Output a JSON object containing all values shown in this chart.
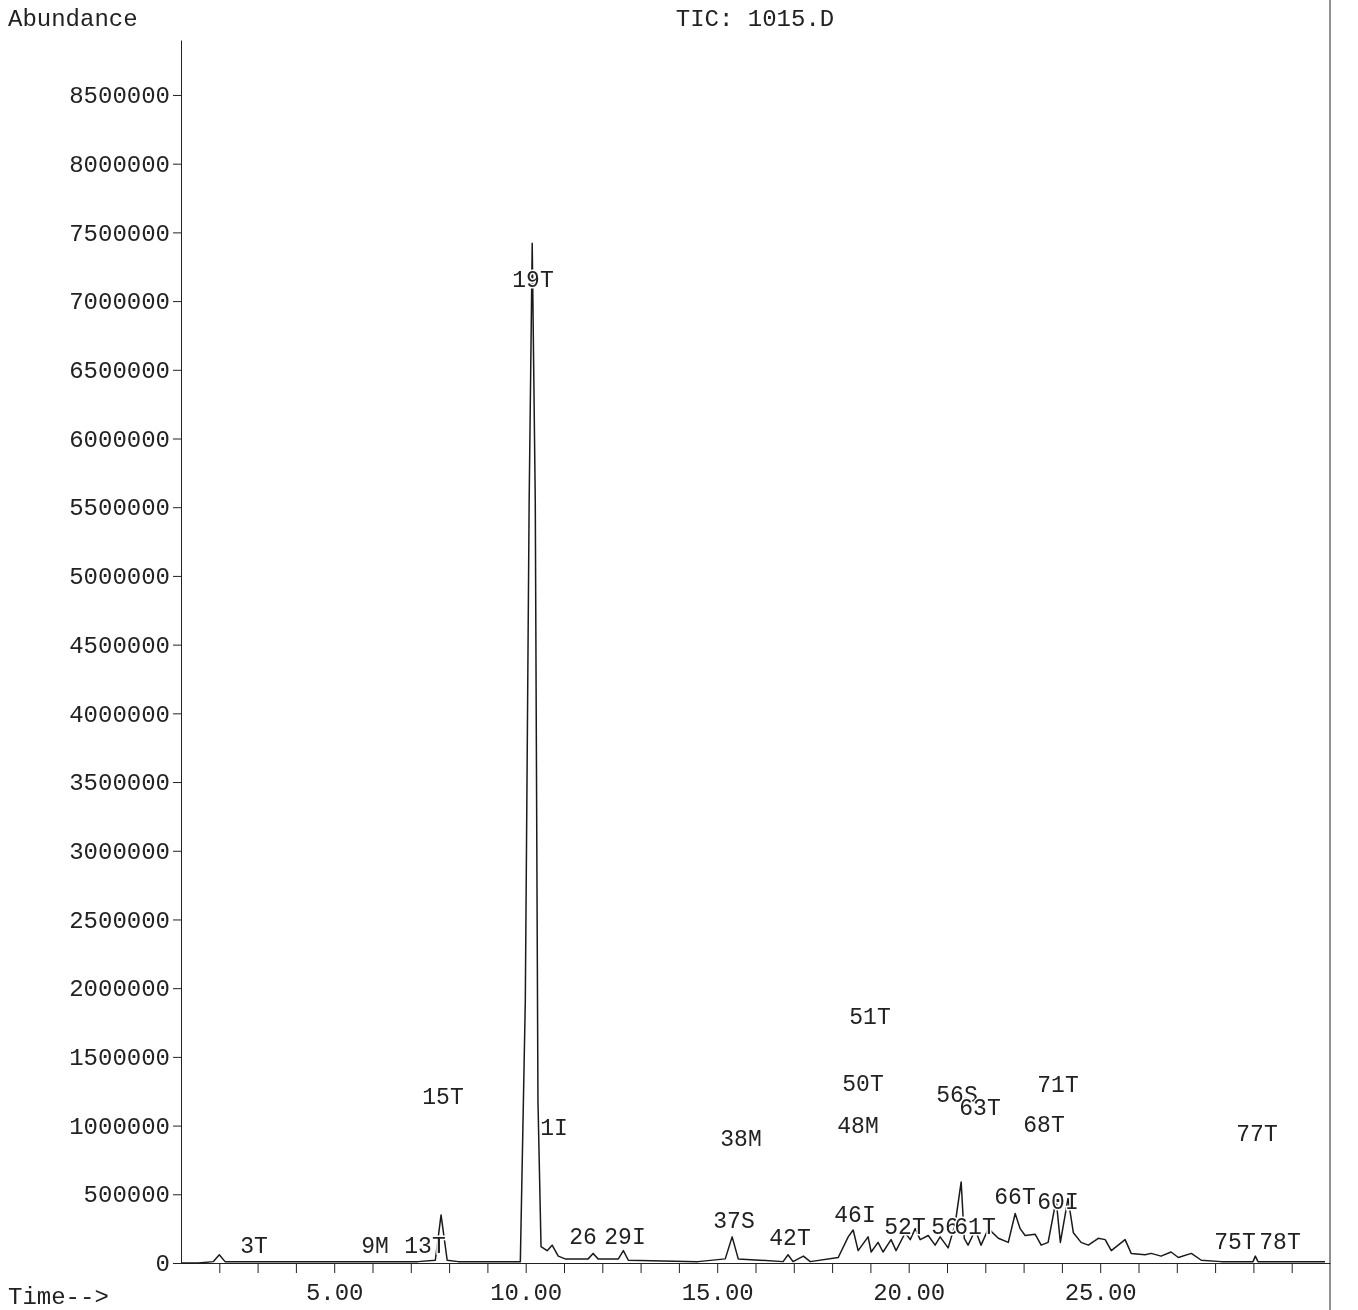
{
  "chart_data": {
    "type": "line",
    "title": "TIC: 1015.D",
    "ylabel": "Abundance",
    "xlabel": "Time-->",
    "x": [
      1.0,
      1.45,
      1.84,
      2.0,
      2.15,
      3.02,
      4.84,
      7.19,
      7.64,
      7.79,
      7.95,
      8.24,
      9.86,
      9.99,
      10.09,
      10.17,
      10.25,
      10.32,
      10.4,
      10.56,
      10.69,
      10.85,
      11.03,
      11.63,
      11.76,
      11.89,
      12.42,
      12.55,
      12.68,
      14.5,
      15.21,
      15.39,
      15.55,
      16.72,
      16.85,
      16.98,
      17.25,
      17.43,
      18.16,
      18.42,
      18.55,
      18.68,
      18.94,
      19.02,
      19.2,
      19.33,
      19.54,
      19.67,
      19.91,
      20.04,
      20.17,
      20.3,
      20.51,
      20.69,
      20.82,
      21.03,
      21.21,
      21.37,
      21.45,
      21.55,
      21.74,
      21.89,
      22.08,
      22.34,
      22.6,
      22.78,
      22.91,
      23.04,
      23.3,
      23.46,
      23.64,
      23.85,
      23.96,
      24.16,
      24.3,
      24.5,
      24.69,
      24.95,
      25.13,
      25.29,
      25.65,
      25.81,
      26.17,
      26.33,
      26.59,
      26.85,
      27.04,
      27.38,
      27.64,
      28.16,
      28.99,
      29.05,
      29.12,
      30.87
    ],
    "series": [
      {
        "color": "#1a1a1a",
        "values": [
          0,
          0,
          10000,
          60000,
          10000,
          10000,
          10000,
          10000,
          20000,
          350000,
          20000,
          10000,
          10000,
          1910000,
          5540000,
          7420000,
          5540000,
          1180000,
          120000,
          90000,
          130000,
          50000,
          30000,
          30000,
          70000,
          30000,
          30000,
          90000,
          20000,
          10000,
          30000,
          190000,
          30000,
          10000,
          60000,
          10000,
          50000,
          10000,
          40000,
          190000,
          240000,
          90000,
          190000,
          80000,
          150000,
          80000,
          170000,
          90000,
          220000,
          170000,
          250000,
          170000,
          200000,
          130000,
          190000,
          110000,
          280000,
          590000,
          180000,
          130000,
          240000,
          130000,
          250000,
          180000,
          150000,
          360000,
          250000,
          200000,
          210000,
          130000,
          150000,
          460000,
          150000,
          470000,
          220000,
          150000,
          130000,
          180000,
          170000,
          90000,
          170000,
          70000,
          60000,
          70000,
          50000,
          80000,
          40000,
          70000,
          20000,
          10000,
          10000,
          50000,
          10000,
          10000
        ]
      }
    ],
    "xlim": [
      1,
      31
    ],
    "xticks": [
      {
        "value": 2,
        "label": null
      },
      {
        "value": 3,
        "label": null
      },
      {
        "value": 4,
        "label": null
      },
      {
        "value": 5,
        "label": "5.00"
      },
      {
        "value": 6,
        "label": null
      },
      {
        "value": 7,
        "label": null
      },
      {
        "value": 8,
        "label": null
      },
      {
        "value": 9,
        "label": null
      },
      {
        "value": 10,
        "label": "10.00"
      },
      {
        "value": 11,
        "label": null
      },
      {
        "value": 12,
        "label": null
      },
      {
        "value": 13,
        "label": null
      },
      {
        "value": 14,
        "label": null
      },
      {
        "value": 15,
        "label": "15.00"
      },
      {
        "value": 16,
        "label": null
      },
      {
        "value": 17,
        "label": null
      },
      {
        "value": 18,
        "label": null
      },
      {
        "value": 19,
        "label": null
      },
      {
        "value": 20,
        "label": "20.00"
      },
      {
        "value": 21,
        "label": null
      },
      {
        "value": 22,
        "label": null
      },
      {
        "value": 23,
        "label": null
      },
      {
        "value": 24,
        "label": null
      },
      {
        "value": 25,
        "label": "25.00"
      },
      {
        "value": 26,
        "label": null
      },
      {
        "value": 27,
        "label": null
      },
      {
        "value": 28,
        "label": null
      },
      {
        "value": 29,
        "label": null
      },
      {
        "value": 30,
        "label": null
      }
    ],
    "ylim": [
      0,
      8900000
    ],
    "yticks": [
      0,
      500000,
      1000000,
      1500000,
      2000000,
      2500000,
      3000000,
      3500000,
      4000000,
      4500000,
      5000000,
      5500000,
      6000000,
      6500000,
      7000000,
      7500000,
      8000000,
      8500000
    ],
    "grid": false,
    "marker": "none",
    "line_style": "solid",
    "annotations": [
      "3T",
      "9M",
      "13T",
      "15T",
      "19T",
      "1I",
      "26",
      "29I",
      "37S",
      "38M",
      "42T",
      "46I",
      "48M",
      "50T",
      "51T",
      "52T",
      "56",
      "61T",
      "56S",
      "63T",
      "66T",
      "60I",
      "68T",
      "71T",
      "75T",
      "77T",
      "78T"
    ]
  }
}
